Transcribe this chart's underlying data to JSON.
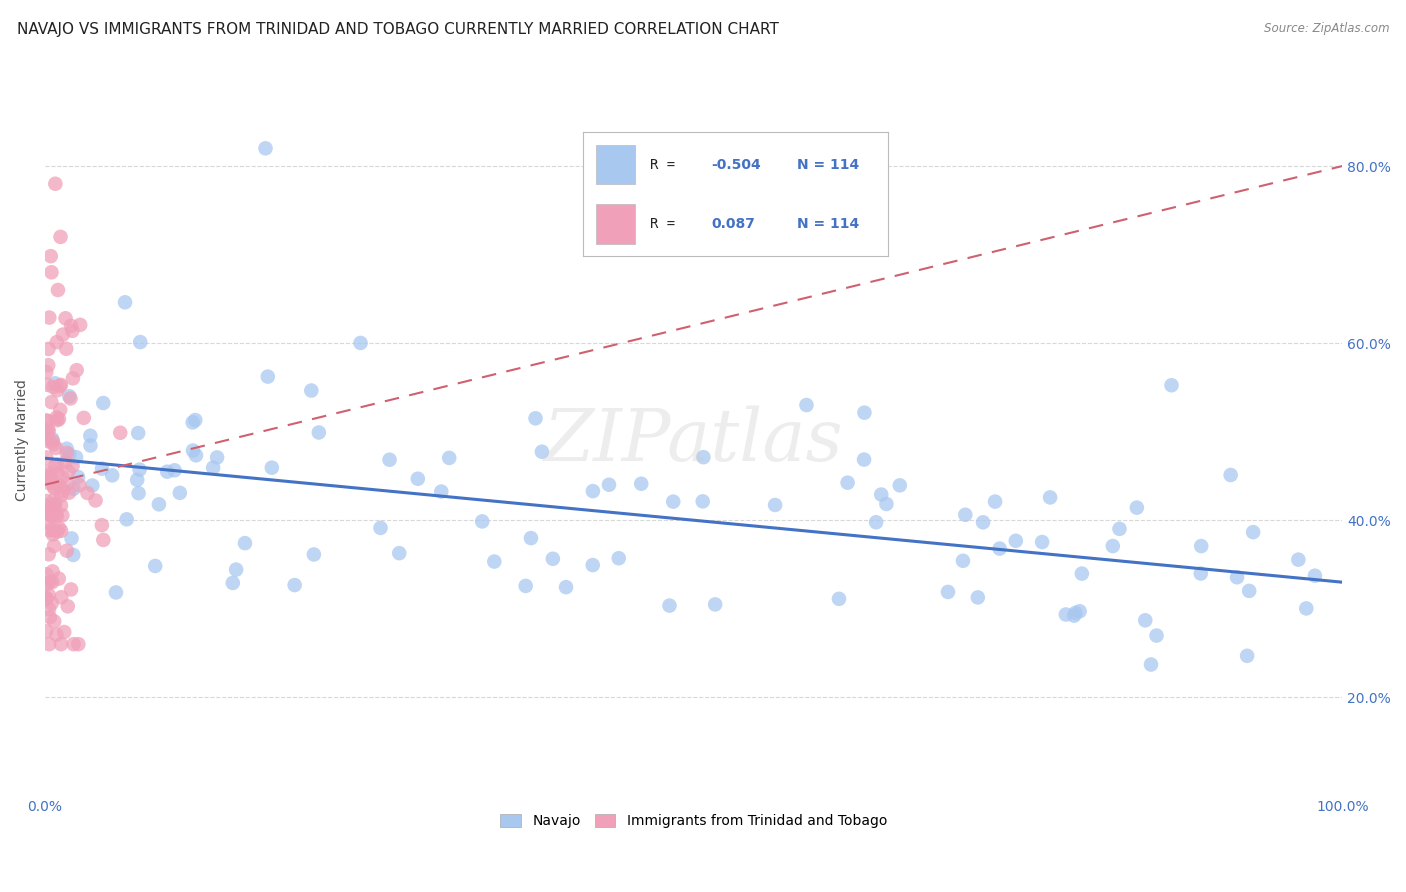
{
  "title": "NAVAJO VS IMMIGRANTS FROM TRINIDAD AND TOBAGO CURRENTLY MARRIED CORRELATION CHART",
  "source_text": "Source: ZipAtlas.com",
  "ylabel": "Currently Married",
  "xlim": [
    0,
    1.0
  ],
  "ylim": [
    0.09,
    0.89
  ],
  "x_ticks": [
    0.0,
    0.2,
    0.4,
    0.6,
    0.8,
    1.0
  ],
  "x_tick_labels": [
    "0.0%",
    "",
    "",
    "",
    "",
    "100.0%"
  ],
  "y_ticks": [
    0.2,
    0.4,
    0.6,
    0.8
  ],
  "y_tick_labels": [
    "20.0%",
    "40.0%",
    "60.0%",
    "80.0%"
  ],
  "navajo_R": -0.504,
  "navajo_N": 114,
  "tt_R": 0.087,
  "tt_N": 114,
  "navajo_color": "#a8c8f0",
  "tt_color": "#f0a0b8",
  "navajo_line_color": "#4472c4",
  "tt_line_color": "#d06070",
  "background_color": "#ffffff",
  "grid_color": "#d8d8d8",
  "title_fontsize": 11,
  "axis_label_fontsize": 10,
  "tick_fontsize": 10,
  "navajo_line_start_y": 0.47,
  "navajo_line_end_y": 0.33,
  "tt_line_start_y": 0.44,
  "tt_line_end_y": 0.8
}
